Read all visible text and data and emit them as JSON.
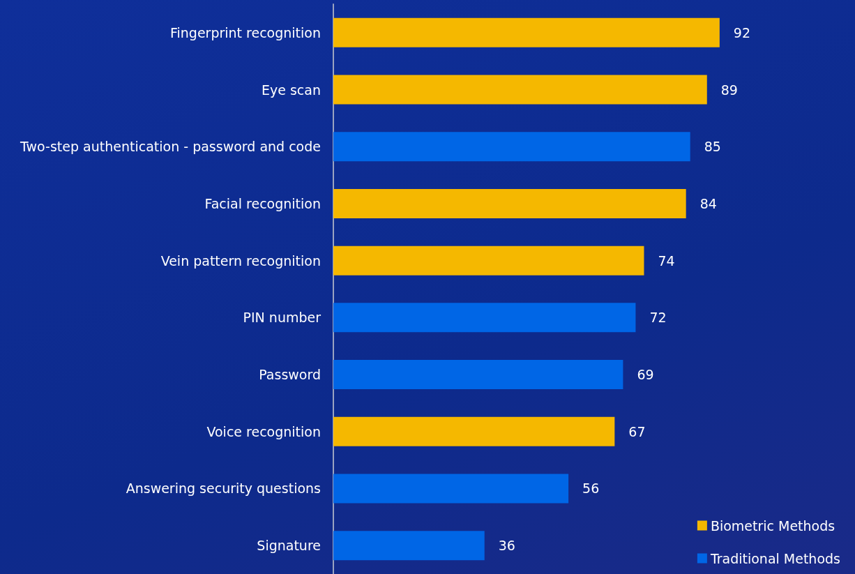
{
  "chart_data": {
    "type": "bar",
    "orientation": "horizontal",
    "categories": [
      "Fingerprint recognition",
      "Eye scan",
      "Two-step authentication - password and code",
      "Facial recognition",
      "Vein pattern recognition",
      "PIN number",
      "Password",
      "Voice recognition",
      "Answering security questions",
      "Signature"
    ],
    "series": [
      {
        "name": "Biometric Methods",
        "color": "#f5b800",
        "values": [
          92,
          89,
          null,
          84,
          74,
          null,
          null,
          67,
          null,
          null
        ]
      },
      {
        "name": "Traditional Methods",
        "color": "#0066e6",
        "values": [
          null,
          null,
          85,
          null,
          null,
          72,
          69,
          null,
          56,
          36
        ]
      }
    ],
    "data_labels": true,
    "legend": "bottom right",
    "grid": false
  }
}
